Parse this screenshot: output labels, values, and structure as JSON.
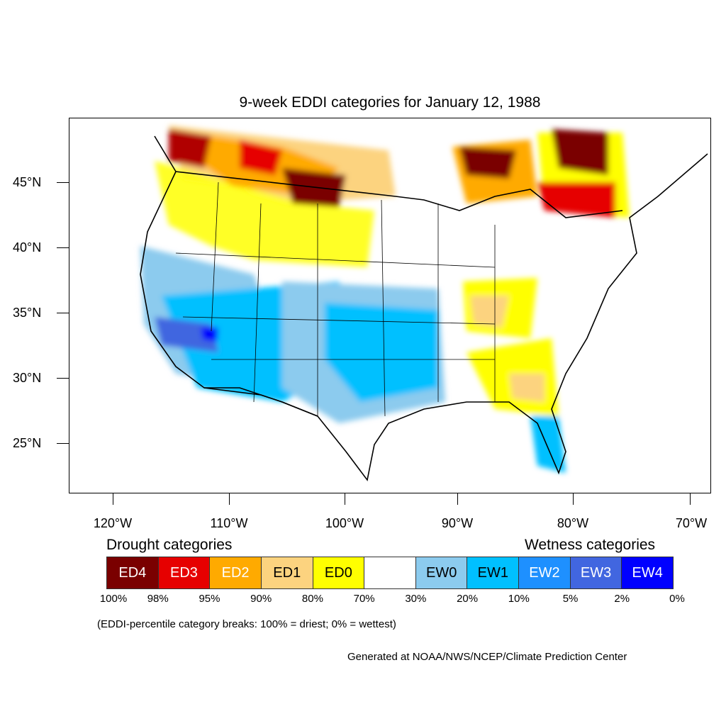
{
  "title": "9-week EDDI categories for January 12, 1988",
  "latitude_labels": [
    "45°N",
    "40°N",
    "35°N",
    "30°N",
    "25°N"
  ],
  "longitude_labels": [
    "120°W",
    "110°W",
    "100°W",
    "90°W",
    "80°W",
    "70°W"
  ],
  "legend": {
    "drought_heading": "Drought categories",
    "wetness_heading": "Wetness categories",
    "categories": [
      {
        "label": "ED4",
        "color": "#7a0000",
        "text_color": "#ffffff"
      },
      {
        "label": "ED3",
        "color": "#e60000",
        "text_color": "#ffffff"
      },
      {
        "label": "ED2",
        "color": "#ffaa00",
        "text_color": "#ffffff"
      },
      {
        "label": "ED1",
        "color": "#fcd37f",
        "text_color": "#000000"
      },
      {
        "label": "ED0",
        "color": "#ffff00",
        "text_color": "#000000"
      },
      {
        "label": "",
        "color": "#ffffff",
        "text_color": "#000000"
      },
      {
        "label": "EW0",
        "color": "#8ccbee",
        "text_color": "#000000"
      },
      {
        "label": "EW1",
        "color": "#00c0ff",
        "text_color": "#000000"
      },
      {
        "label": "EW2",
        "color": "#1e90ff",
        "text_color": "#ffffff"
      },
      {
        "label": "EW3",
        "color": "#4166e0",
        "text_color": "#ffffff"
      },
      {
        "label": "EW4",
        "color": "#0000ff",
        "text_color": "#ffffff"
      }
    ],
    "percentile_breaks": [
      "100%",
      "98%",
      "95%",
      "90%",
      "80%",
      "70%",
      "30%",
      "20%",
      "10%",
      "5%",
      "2%",
      "0%"
    ]
  },
  "note": "(EDDI-percentile category breaks: 100% = driest; 0% = wettest)",
  "credit": "Generated at NOAA/NWS/NCEP/Climate Prediction Center"
}
